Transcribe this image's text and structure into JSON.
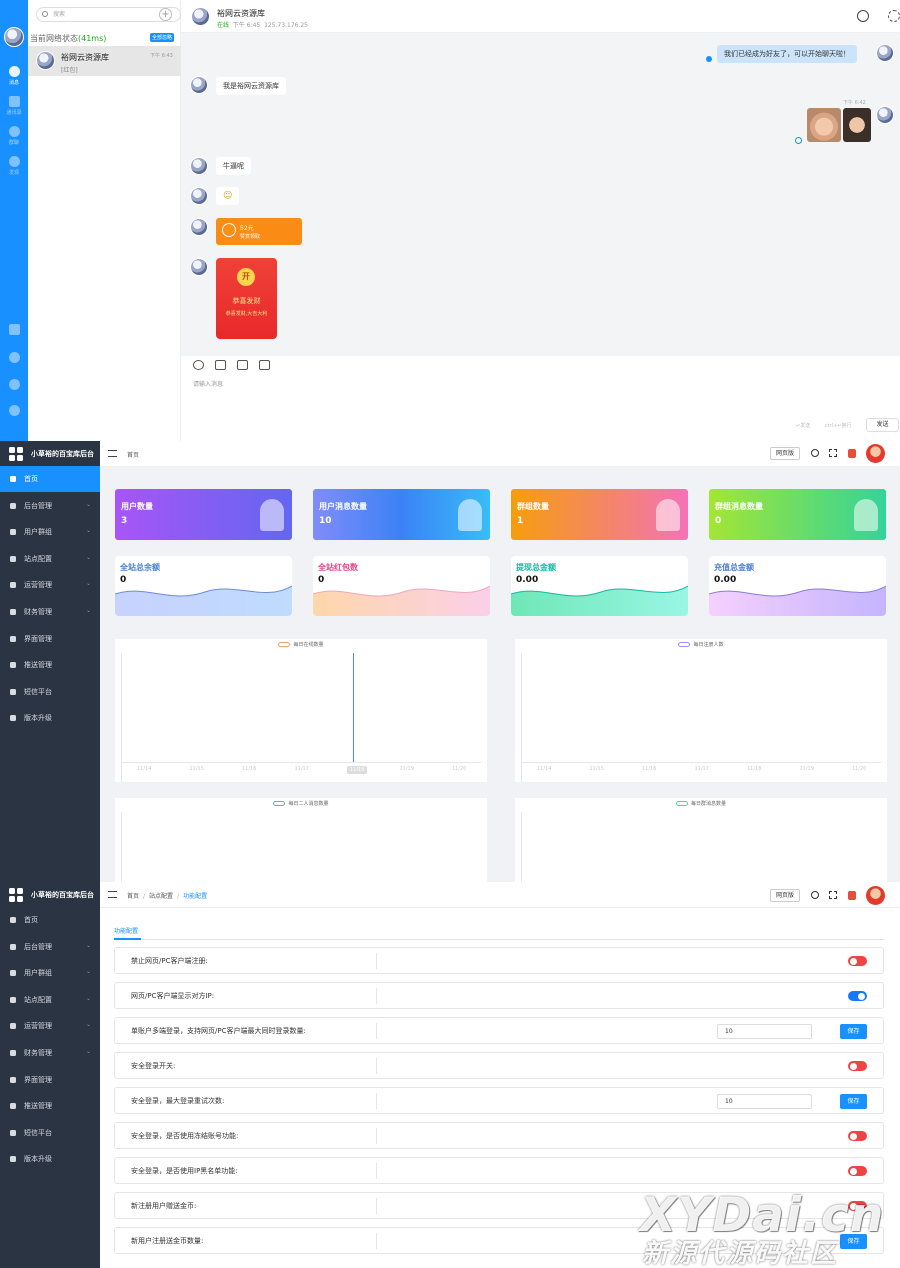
{
  "chat": {
    "search_placeholder": "搜索",
    "network_label": "当前网络状态",
    "network_latency": "(41ms)",
    "ignore_all": "全部忽略",
    "conversation": {
      "name": "裕网云资源库",
      "last_message": "[红包]",
      "time": "下午 6:43"
    },
    "header": {
      "name": "裕网云资源库",
      "status": "在线",
      "time": "下午 6:45",
      "ip": "125.73.176.25"
    },
    "messages": {
      "m1": "我们已经成为好友了，可以开始聊天啦！",
      "m2": "我是裕网云资源库",
      "m3_time": "下午 6:42",
      "m4": "牛逼呢",
      "m5": "☺",
      "m6_amount": "52元",
      "m6_label": "赞赏领取",
      "m7_open": "开",
      "m7_title": "恭喜发财",
      "m7_sub": "恭喜发财,大吉大利"
    },
    "composer_placeholder": "请输入消息",
    "hint_send": "↵发送",
    "hint_newline": "ctrl+↵换行",
    "send_label": "发送",
    "rail": {
      "messages": "消息",
      "contacts": "通讯录",
      "groups": "群聊",
      "discover": "发现"
    }
  },
  "admin": {
    "brand": "小草裕的百宝库后台",
    "web_label": "网页版",
    "menu": [
      "首页",
      "后台管理",
      "用户群组",
      "站点配置",
      "运营管理",
      "财务管理",
      "界面管理",
      "推送管理",
      "短信平台",
      "版本升级"
    ],
    "dashboard": {
      "crumb": "首页",
      "stats": [
        {
          "label": "用户数量",
          "value": "3"
        },
        {
          "label": "用户消息数量",
          "value": "10"
        },
        {
          "label": "群组数量",
          "value": "1"
        },
        {
          "label": "群组消息数量",
          "value": "0"
        }
      ],
      "money": [
        {
          "label": "全站总余额",
          "value": "0",
          "color": "#4a7fd6"
        },
        {
          "label": "全站红包数",
          "value": "0",
          "color": "#e8458a"
        },
        {
          "label": "提现总金额",
          "value": "0.00",
          "color": "#14b8a6"
        },
        {
          "label": "充值总金额",
          "value": "0.00",
          "color": "#4a7fd6"
        }
      ],
      "charts": [
        {
          "legend": "每日在线数量",
          "color": "#f4a261"
        },
        {
          "legend": "每日注册人数",
          "color": "#a78bfa"
        },
        {
          "legend": "每日二人消息数量",
          "color": "#60a5fa"
        },
        {
          "legend": "每日群消息数量",
          "color": "#4ade80"
        }
      ],
      "x_ticks": [
        "11/14",
        "11/15",
        "11/16",
        "11/17",
        "11/18",
        "11/19",
        "11/20"
      ],
      "highlight_tick": "11/18"
    },
    "config": {
      "crumbs": [
        "首页",
        "站点配置",
        "功能配置"
      ],
      "tab": "功能配置",
      "save": "保存",
      "rows": [
        {
          "label": "禁止网页/PC客户端注册:",
          "type": "toggle",
          "on": false
        },
        {
          "label": "网页/PC客户端显示对方IP:",
          "type": "toggle",
          "on": true
        },
        {
          "label": "单账户多端登录，支持网页/PC客户端最大同时登录数量:",
          "type": "input",
          "value": "10"
        },
        {
          "label": "安全登录开关:",
          "type": "toggle",
          "on": false
        },
        {
          "label": "安全登录，最大登录重试次数:",
          "type": "input",
          "value": "10"
        },
        {
          "label": "安全登录，是否使用冻结账号功能:",
          "type": "toggle",
          "on": false
        },
        {
          "label": "安全登录，是否使用IP黑名单功能:",
          "type": "toggle",
          "on": false
        },
        {
          "label": "新注册用户赠送金币:",
          "type": "toggle",
          "on": false
        },
        {
          "label": "新用户注册送金币数量:",
          "type": "save"
        }
      ]
    }
  },
  "watermark": {
    "line1": "XYDai.cn",
    "line2": "新源代源码社区"
  }
}
